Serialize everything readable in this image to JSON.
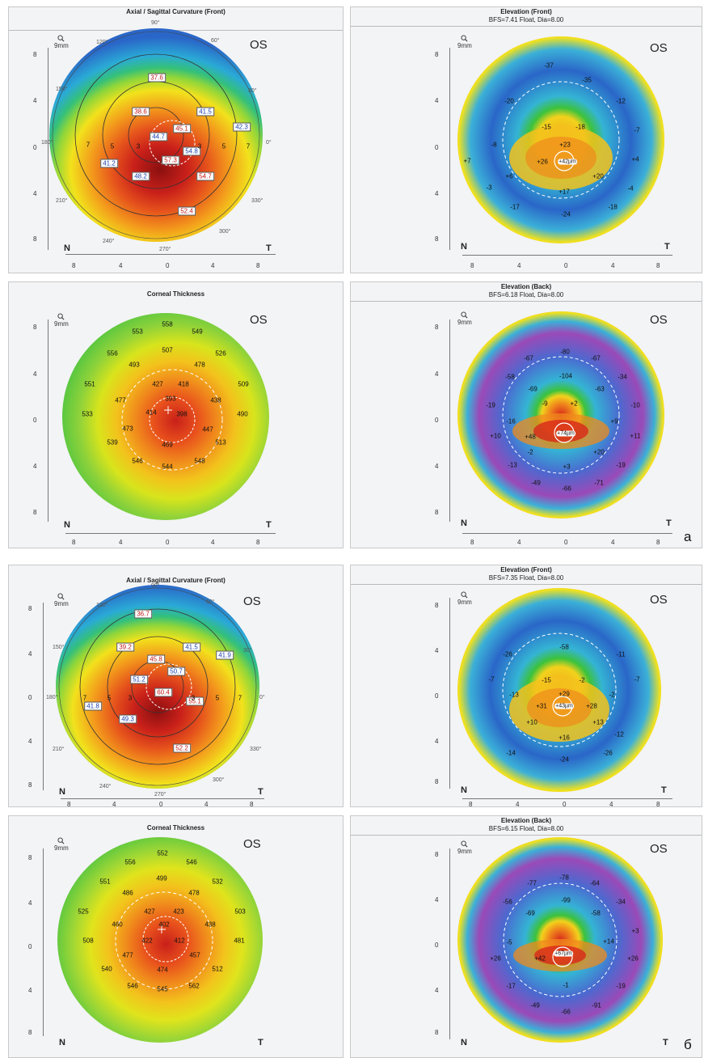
{
  "figures": [
    {
      "label": "а",
      "curvature": {
        "title": "Axial / Sagittal Curvature (Front)",
        "eye": "OS",
        "zoom": "9mm",
        "nasal": "N",
        "temporal": "T",
        "axis_labels": [
          "8",
          "4",
          "0",
          "4",
          "8"
        ],
        "degrees": [
          "90°",
          "60°",
          "30°",
          "0°",
          "330°",
          "300°",
          "270°",
          "240°",
          "210°",
          "180°",
          "150°",
          "120°"
        ],
        "values": [
          "37.6",
          "38.6",
          "41.5",
          "45.1",
          "44.7",
          "42.3",
          "41.2",
          "54.8",
          "57.3",
          "48.2",
          "54.7",
          "52.4"
        ],
        "zone_digits": [
          "7",
          "5",
          "3",
          "3",
          "5",
          "7"
        ]
      },
      "elevation_front": {
        "title": "Elevation (Front)",
        "subtitle": "BFS=7.41 Float, Dia=8.00",
        "eye": "OS",
        "zoom": "9mm",
        "nasal": "N",
        "temporal": "T",
        "axis_labels": [
          "8",
          "4",
          "0",
          "4",
          "8"
        ],
        "center": "+42µm",
        "values": [
          "-37",
          "-35",
          "-20",
          "-12",
          "-15",
          "-18",
          "+7",
          "-8",
          "-7",
          "+23",
          "+26",
          "+4",
          "+6",
          "+20",
          "-3",
          "+17",
          "-4",
          "-17",
          "-24",
          "-18"
        ]
      },
      "thickness": {
        "title": "Corneal Thickness",
        "eye": "OS",
        "zoom": "9mm",
        "nasal": "N",
        "temporal": "T",
        "axis_labels": [
          "8",
          "4",
          "0",
          "4",
          "8"
        ],
        "values": [
          "558",
          "553",
          "549",
          "556",
          "507",
          "526",
          "493",
          "478",
          "551",
          "427",
          "418",
          "509",
          "477",
          "393",
          "438",
          "533",
          "414",
          "398",
          "490",
          "473",
          "447",
          "539",
          "469",
          "513",
          "546",
          "544",
          "548"
        ]
      },
      "elevation_back": {
        "title": "Elevation (Back)",
        "subtitle": "BFS=6.18 Float, Dia=8.00",
        "eye": "OS",
        "zoom": "9mm",
        "nasal": "N",
        "temporal": "T",
        "axis_labels": [
          "8",
          "4",
          "0",
          "4",
          "8"
        ],
        "center": "+74µm",
        "values": [
          "-67",
          "-80",
          "-67",
          "-58",
          "-104",
          "-34",
          "-69",
          "-63",
          "-19",
          "-9",
          "+2",
          "-10",
          "-16",
          "+9",
          "+10",
          "+48",
          "+11",
          "+20",
          "-2",
          "-13",
          "+3",
          "-19",
          "-49",
          "-66",
          "-71"
        ]
      }
    },
    {
      "label": "б",
      "curvature": {
        "title": "Axial / Sagittal Curvature (Front)",
        "eye": "OS",
        "zoom": "9mm",
        "nasal": "N",
        "temporal": "T",
        "axis_labels": [
          "8",
          "4",
          "0",
          "4",
          "8"
        ],
        "degrees": [
          "90°",
          "60°",
          "30°",
          "0°",
          "330°",
          "300°",
          "270°",
          "240°",
          "210°",
          "180°",
          "150°",
          "120°"
        ],
        "values": [
          "36.7",
          "39.2",
          "41.5",
          "45.8",
          "41.9",
          "51.2",
          "50.7",
          "41.8",
          "60.4",
          "49.3",
          "55.1",
          "52.2"
        ],
        "zone_digits": [
          "7",
          "5",
          "3",
          "3",
          "5",
          "7"
        ]
      },
      "elevation_front": {
        "title": "Elevation (Front)",
        "subtitle": "BFS=7.35 Float, Dia=8.00",
        "eye": "OS",
        "zoom": "9mm",
        "nasal": "N",
        "temporal": "T",
        "axis_labels": [
          "8",
          "4",
          "0",
          "4",
          "8"
        ],
        "center": "+43µm",
        "values": [
          "-58",
          "-26",
          "-11",
          "-7",
          "-15",
          "-2",
          "-7",
          "-13",
          "+29",
          "-2",
          "+31",
          "+28",
          "+10",
          "+13",
          "+16",
          "-12",
          "-14",
          "-24",
          "-26"
        ]
      },
      "thickness": {
        "title": "Corneal Thickness",
        "eye": "OS",
        "zoom": "9mm",
        "nasal": "N",
        "temporal": "T",
        "axis_labels": [
          "8",
          "4",
          "0",
          "4",
          "8"
        ],
        "values": [
          "552",
          "556",
          "546",
          "551",
          "499",
          "532",
          "486",
          "478",
          "525",
          "427",
          "423",
          "503",
          "460",
          "402",
          "438",
          "508",
          "422",
          "412",
          "481",
          "477",
          "457",
          "540",
          "474",
          "512",
          "546",
          "545",
          "562"
        ]
      },
      "elevation_back": {
        "title": "Elevation (Back)",
        "subtitle": "BFS=6.15 Float, Dia=8.00",
        "eye": "OS",
        "zoom": "9mm",
        "nasal": "N",
        "temporal": "T",
        "axis_labels": [
          "8",
          "4",
          "0",
          "4",
          "8"
        ],
        "center": "+67µm",
        "values": [
          "-77",
          "-78",
          "-64",
          "-56",
          "-99",
          "-34",
          "-69",
          "-58",
          "+3",
          "-5",
          "+14",
          "+26",
          "+42",
          "+26",
          "-17",
          "-1",
          "-19",
          "-49",
          "-66",
          "-91"
        ]
      }
    }
  ],
  "colors": {
    "dark_red": "#7a0a0a",
    "red": "#d8281c",
    "orange": "#f08a1c",
    "yellow": "#f2e21c",
    "green": "#3cc23c",
    "cyan": "#2ab6d6",
    "blue": "#2a66c8",
    "purple": "#9a4ab8"
  }
}
